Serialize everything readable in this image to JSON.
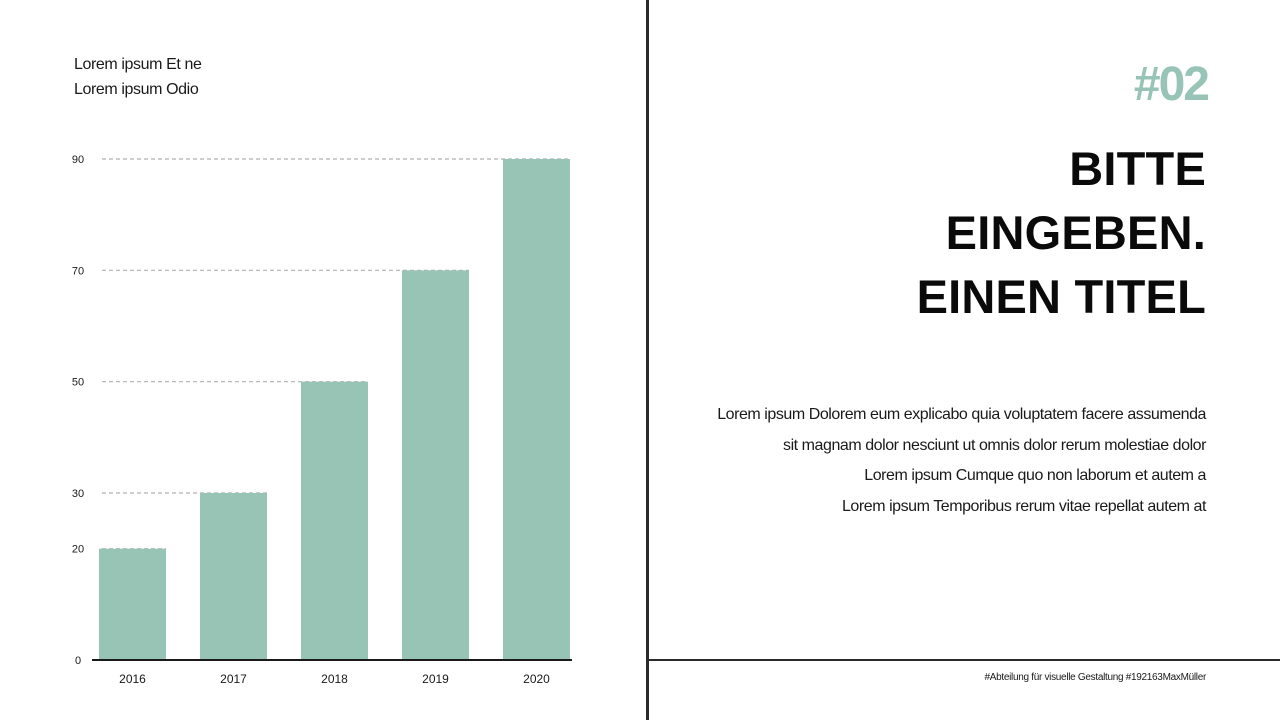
{
  "left_panel": {
    "caption_lines": [
      "Lorem ipsum Et ne",
      "Lorem ipsum Odio"
    ]
  },
  "right_panel": {
    "number": "#02",
    "title_lines": [
      "BITTE",
      "EINGEBEN.",
      "EINEN TITEL"
    ],
    "body_lines": [
      "Lorem ipsum Dolorem eum explicabo quia voluptatem facere assumenda",
      "sit magnam dolor nesciunt ut omnis dolor rerum molestiae dolor",
      "Lorem ipsum Cumque quo non laborum et autem a",
      "Lorem ipsum Temporibus rerum vitae repellat autem at"
    ],
    "footer": "#Abteilung für visuelle Gestaltung #192163MaxMüller"
  },
  "colors": {
    "accent": "#97c4b6",
    "bar": "#98c4b6",
    "text": "#0a0a0a",
    "divider": "#2b2b2b",
    "gridline": "#b0b0b0"
  },
  "chart_data": {
    "type": "bar",
    "categories": [
      "2016",
      "2017",
      "2018",
      "2019",
      "2020"
    ],
    "values": [
      20,
      30,
      50,
      70,
      90
    ],
    "y_ticks": [
      0,
      20,
      30,
      50,
      70,
      90
    ],
    "ylim": [
      0,
      90
    ],
    "grid": "dashed lines at bar tops",
    "legend": "none",
    "title": "",
    "xlabel": "",
    "ylabel": ""
  }
}
